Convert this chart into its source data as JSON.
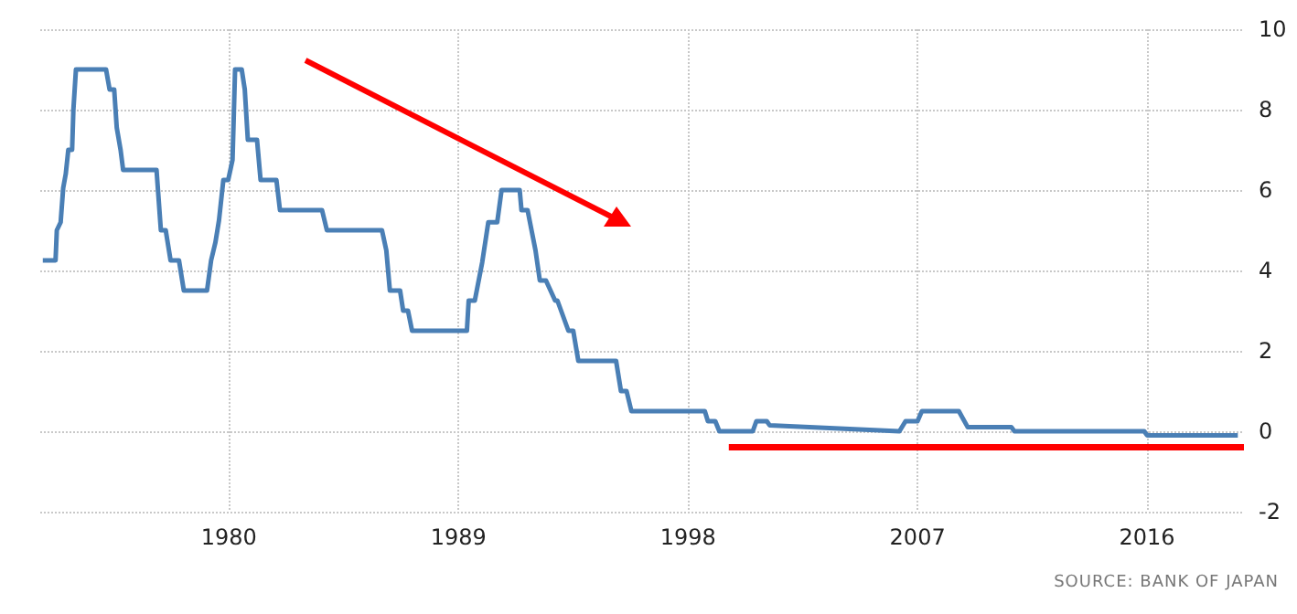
{
  "chart_data": {
    "type": "line",
    "annotations": [
      "SOURCE: BANK OF JAPAN"
    ],
    "series": [
      {
        "color": "#4a7fb5",
        "x": [
          1972.7,
          1973.2,
          1973.25,
          1973.4,
          1973.5,
          1973.6,
          1973.7,
          1973.85,
          1973.9,
          1974.0,
          1975.18,
          1975.32,
          1975.5,
          1975.6,
          1975.75,
          1975.85,
          1977.16,
          1977.33,
          1977.52,
          1977.71,
          1978.04,
          1978.23,
          1979.14,
          1979.3,
          1979.47,
          1979.61,
          1979.78,
          1979.97,
          1980.14,
          1980.24,
          1980.5,
          1980.62,
          1980.74,
          1981.1,
          1981.24,
          1981.86,
          1982.0,
          1983.65,
          1983.84,
          1986.0,
          1986.17,
          1986.31,
          1986.71,
          1986.83,
          1987.02,
          1987.18,
          1989.33,
          1989.4,
          1989.64,
          1989.93,
          1990.17,
          1990.52,
          1990.69,
          1991.4,
          1991.47,
          1991.71,
          1992.02,
          1992.19,
          1992.43,
          1992.79,
          1992.88,
          1993.31,
          1993.5,
          1993.7,
          1995.18,
          1995.37,
          1995.59,
          1995.78,
          1998.66,
          1998.78,
          1999.07,
          1999.23,
          2000.54,
          2000.68,
          2001.09,
          2001.2,
          2006.29,
          2006.53,
          2007.0,
          2007.17,
          2008.62,
          2008.97,
          2010.68,
          2010.8,
          2015.89,
          2016.0,
          2019.56
        ],
        "values": [
          4.25,
          4.25,
          5.0,
          5.2,
          6.05,
          6.4,
          7.0,
          7.0,
          8.0,
          9.0,
          9.0,
          8.5,
          8.5,
          7.55,
          7.0,
          6.5,
          6.5,
          5.0,
          5.0,
          4.25,
          4.25,
          3.5,
          3.5,
          4.25,
          4.7,
          5.25,
          6.25,
          6.25,
          6.75,
          9.0,
          9.0,
          8.5,
          7.25,
          7.25,
          6.25,
          6.25,
          5.5,
          5.5,
          5.0,
          5.0,
          4.5,
          3.5,
          3.5,
          3.0,
          3.0,
          2.5,
          2.5,
          3.25,
          3.25,
          4.2,
          5.2,
          5.2,
          6.0,
          6.0,
          5.5,
          5.5,
          4.5,
          3.75,
          3.75,
          3.25,
          3.25,
          2.5,
          2.5,
          1.75,
          1.75,
          1.0,
          1.0,
          0.5,
          0.5,
          0.25,
          0.25,
          0,
          0,
          0.25,
          0.25,
          0.15,
          0,
          0.25,
          0.25,
          0.5,
          0.5,
          0.1,
          0.1,
          0,
          0,
          -0.1,
          -0.1
        ]
      },
      {
        "color": "#ff0000",
        "x": [
          1999.6,
          2019.8
        ],
        "values": [
          -0.4,
          -0.4
        ]
      }
    ],
    "xlim": [
      1972.6,
      2019.8
    ],
    "xticks": [
      1980,
      1989,
      1998,
      2007,
      2016
    ],
    "ylim": [
      -2,
      10
    ],
    "yticks": [
      -2,
      0,
      2,
      4,
      6,
      8,
      10
    ],
    "grid": true,
    "marker": "none",
    "line_style": "solid"
  }
}
